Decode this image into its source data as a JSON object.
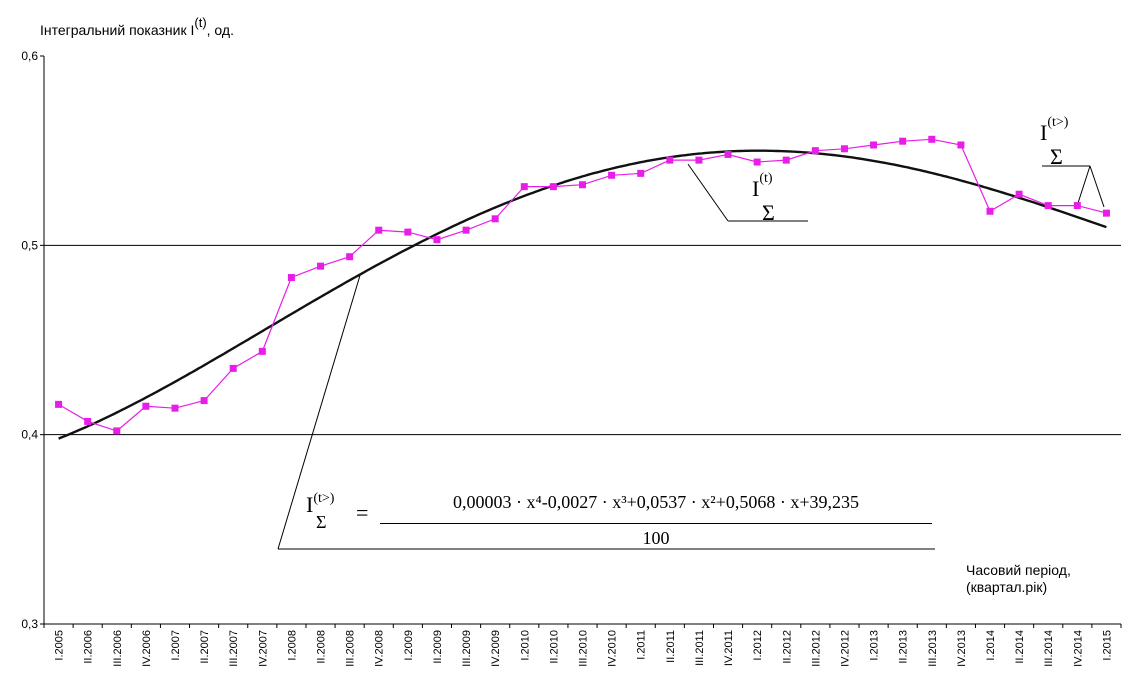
{
  "chart_data": {
    "type": "line",
    "ylabel": "Інтегральний показник I",
    "ylabel_unit": ", од.",
    "ylabel_sup": "(t)",
    "xlabel_line1": "Часовий період,",
    "xlabel_line2": "(квартал.рік)",
    "ylim": [
      0.3,
      0.6
    ],
    "yticks": [
      "0,3",
      "0,4",
      "0,5",
      "0,6"
    ],
    "grid": "horizontal",
    "categories": [
      "I.2005",
      "II.2006",
      "III.2006",
      "IV.2006",
      "I.2007",
      "II.2007",
      "III.2007",
      "IV.2007",
      "I.2008",
      "II.2008",
      "III.2008",
      "IV.2008",
      "I.2009",
      "II.2009",
      "III.2009",
      "IV.2009",
      "I.2010",
      "II.2010",
      "III.2010",
      "IV.2010",
      "I.2011",
      "II.2011",
      "III.2011",
      "IV.2011",
      "I.2012",
      "II.2012",
      "III.2012",
      "IV.2012",
      "I.2013",
      "II.2013",
      "III.2013",
      "IV.2013",
      "I.2014",
      "II.2014",
      "III.2014",
      "IV.2014",
      "I.2015"
    ],
    "series": [
      {
        "color": "#e81ee8",
        "marker": "square",
        "values": [
          0.416,
          0.407,
          0.402,
          0.415,
          0.414,
          0.418,
          0.435,
          0.444,
          0.483,
          0.489,
          0.494,
          0.508,
          0.507,
          0.503,
          0.508,
          0.514,
          0.531,
          0.531,
          0.532,
          0.537,
          0.538,
          0.545,
          0.545,
          0.548,
          0.544,
          0.545,
          0.55,
          0.551,
          0.553,
          0.555,
          0.556,
          0.553,
          0.518,
          0.527,
          0.521,
          0.521,
          0.517
        ]
      },
      {
        "color": "#111111",
        "marker": "none",
        "fit": "(0.00003*x^4 - 0.0027*x^3 + 0.0537*x^2 + 0.5068*x + 39.235)/100"
      }
    ],
    "annotations": {
      "trend_label": "I",
      "trend_label_sub": "Σ",
      "trend_label_sup": "(t>)",
      "actual_label": "I",
      "actual_label_sub": "Σ",
      "actual_label_sup": "(t)",
      "formula_lhs": "I",
      "formula_lhs_sub": "Σ",
      "formula_lhs_sup": "(t>)",
      "formula_eq": "=",
      "formula_numerator": "0,00003 · x⁴-0,0027 · x³+0,0537 · x²+0,5068 · x+39,235",
      "formula_denominator": "100"
    }
  }
}
